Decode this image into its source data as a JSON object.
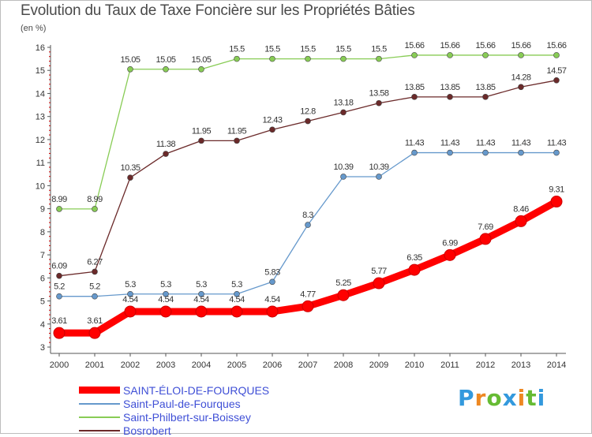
{
  "chart_data": {
    "type": "line",
    "title": "Evolution du Taux de Taxe Foncière sur les Propriétés Bâties",
    "unit_label": "(en %)",
    "x": [
      "2000",
      "2001",
      "2002",
      "2003",
      "2004",
      "2005",
      "2006",
      "2007",
      "2008",
      "2009",
      "2010",
      "2011",
      "2012",
      "2013",
      "2014"
    ],
    "ylim": [
      3,
      16
    ],
    "yticks": [
      "3",
      "4",
      "5",
      "6",
      "7",
      "8",
      "9",
      "10",
      "11",
      "12",
      "13",
      "14",
      "15",
      "16"
    ],
    "grid": false,
    "legend_position": "bottom-left",
    "series": [
      {
        "name": "SAINT-ÉLOI-DE-FOURQUES",
        "color": "#ff0000",
        "emphasis": true,
        "values": [
          3.61,
          3.61,
          4.54,
          4.54,
          4.54,
          4.54,
          4.54,
          4.77,
          5.25,
          5.77,
          6.35,
          6.99,
          7.69,
          8.46,
          9.31
        ],
        "labels": [
          "3.61",
          "3.61",
          "4.54",
          "4.54",
          "4.54",
          "4.54",
          "4.54",
          "4.77",
          "5.25",
          "5.77",
          "6.35",
          "6.99",
          "7.69",
          "8.46",
          "9.31"
        ]
      },
      {
        "name": "Saint-Paul-de-Fourques",
        "color": "#6699cc",
        "emphasis": false,
        "values": [
          5.2,
          5.2,
          5.3,
          5.3,
          5.3,
          5.3,
          5.83,
          8.3,
          10.39,
          10.39,
          11.43,
          11.43,
          11.43,
          11.43,
          11.43
        ],
        "labels": [
          "5.2",
          "5.2",
          "5.3",
          "5.3",
          "5.3",
          "5.3",
          "5.83",
          "8.3",
          "10.39",
          "10.39",
          "11.43",
          "11.43",
          "11.43",
          "11.43",
          "11.43"
        ]
      },
      {
        "name": "Saint-Philbert-sur-Boissey",
        "color": "#88cc55",
        "emphasis": false,
        "values": [
          8.99,
          8.99,
          15.05,
          15.05,
          15.05,
          15.5,
          15.5,
          15.5,
          15.5,
          15.5,
          15.66,
          15.66,
          15.66,
          15.66,
          15.66
        ],
        "labels": [
          "8.99",
          "8.99",
          "15.05",
          "15.05",
          "15.05",
          "15.5",
          "15.5",
          "15.5",
          "15.5",
          "15.5",
          "15.66",
          "15.66",
          "15.66",
          "15.66",
          "15.66"
        ]
      },
      {
        "name": "Bosrobert",
        "color": "#6b2a2a",
        "emphasis": false,
        "values": [
          6.09,
          6.27,
          10.35,
          11.38,
          11.95,
          11.95,
          12.43,
          12.8,
          13.18,
          13.58,
          13.85,
          13.85,
          13.85,
          14.28,
          14.57
        ],
        "labels": [
          "6.09",
          "6.27",
          "10.35",
          "11.38",
          "11.95",
          "11.95",
          "12.43",
          "12.8",
          "13.18",
          "13.58",
          "13.85",
          "13.85",
          "13.85",
          "14.28",
          "14.57"
        ]
      }
    ]
  },
  "brand": {
    "name": "Proxiti",
    "letters": [
      "P",
      "r",
      "o",
      "x",
      "i",
      "t",
      "i"
    ],
    "letter_colors": [
      "#3399dd",
      "#ee8822",
      "#66bb33",
      "#3399dd",
      "#ee8822",
      "#66bb33",
      "#3399dd"
    ]
  },
  "colors": {
    "axis": "#555555",
    "tick_red": "#cc0000",
    "value_label": "#333333"
  }
}
